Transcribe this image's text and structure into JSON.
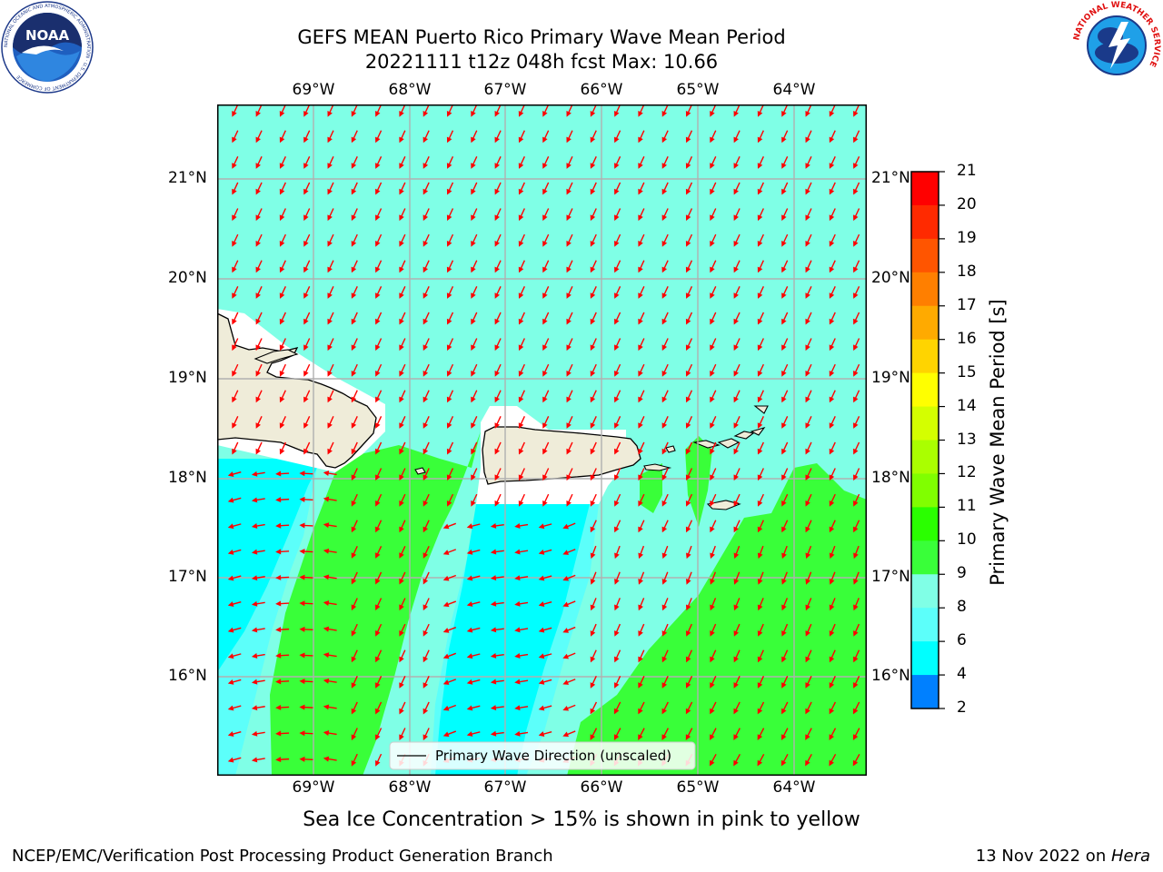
{
  "header": {
    "title_line1": "GEFS MEAN Puerto Rico Primary Wave Mean Period",
    "title_line2": "20221111 t12z 048h fcst   Max: 10.66"
  },
  "logos": {
    "noaa_text": "NOAA",
    "noaa_ring": "NATIONAL OCEANIC AND ATMOSPHERIC ADMINISTRATION · U.S. DEPARTMENT OF COMMERCE",
    "nws_ring": "NATIONAL WEATHER SERVICE"
  },
  "map": {
    "lon_labels": [
      "69°W",
      "68°W",
      "67°W",
      "66°W",
      "65°W",
      "64°W"
    ],
    "lat_labels": [
      "21°N",
      "20°N",
      "19°N",
      "18°N",
      "17°N",
      "16°N"
    ],
    "legend_label": "Primary Wave Direction (unscaled)",
    "arrow_color": "#ff0000",
    "ocean_color": "#7fffe6",
    "land_color": "#efecd9"
  },
  "colorbar": {
    "label": "Primary Wave Mean Period [s]",
    "ticks": [
      "21",
      "20",
      "19",
      "18",
      "17",
      "16",
      "15",
      "14",
      "13",
      "12",
      "11",
      "10",
      "9",
      "8",
      "6",
      "4",
      "2"
    ],
    "colors": [
      "#ff0000",
      "#ff2a00",
      "#ff5500",
      "#ff7f00",
      "#ffaa00",
      "#ffd400",
      "#ffff00",
      "#d4ff00",
      "#aaff00",
      "#80ff00",
      "#2aff00",
      "#39ff39",
      "#80ffe6",
      "#5cfffa",
      "#00ffff",
      "#0080ff",
      "#0000ff"
    ]
  },
  "caption": "Sea Ice Concentration > 15% is shown in pink to yellow",
  "footer": {
    "left": "NCEP/EMC/Verification Post Processing Product Generation Branch",
    "right_prefix": "13 Nov 2022 on ",
    "right_host": "Hera"
  }
}
